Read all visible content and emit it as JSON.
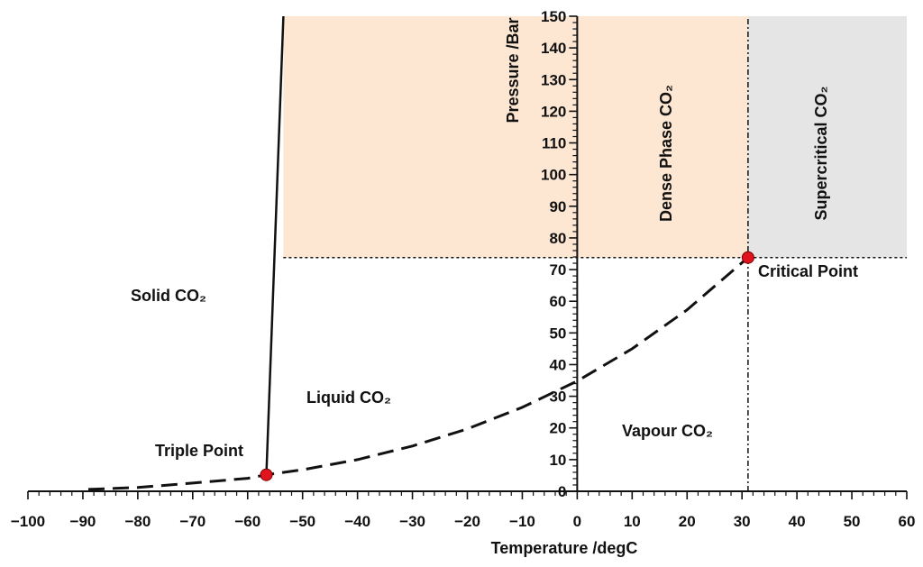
{
  "chart_data": {
    "type": "line",
    "title": "",
    "xlabel": "Temperature /degC",
    "ylabel": "Pressure /Bar",
    "xlim": [
      -100,
      60
    ],
    "ylim": [
      0,
      150
    ],
    "x_ticks": [
      -100,
      -90,
      -80,
      -70,
      -60,
      -50,
      -40,
      -30,
      -20,
      -10,
      0,
      10,
      20,
      30,
      40,
      50,
      60
    ],
    "y_ticks": [
      0,
      10,
      20,
      30,
      40,
      50,
      60,
      70,
      80,
      90,
      100,
      110,
      120,
      130,
      140,
      150
    ],
    "x_tick_labels": [
      "−100",
      "−90",
      "−80",
      "−70",
      "−60",
      "−50",
      "−40",
      "−30",
      "−20",
      "−10",
      "0",
      "10",
      "20",
      "30",
      "40",
      "50",
      "60"
    ],
    "y_tick_labels": [
      "0",
      "10",
      "20",
      "30",
      "40",
      "50",
      "60",
      "70",
      "80",
      "90",
      "100",
      "110",
      "120",
      "130",
      "140",
      "150"
    ],
    "grid": false,
    "series": [
      {
        "style": "solid",
        "color": "#111111",
        "points": [
          [
            -56.6,
            5.2
          ],
          [
            -53.5,
            150
          ]
        ]
      },
      {
        "style": "dashed",
        "color": "#111111",
        "points": [
          [
            -89,
            0.6
          ],
          [
            -80,
            1.2
          ],
          [
            -70,
            2.6
          ],
          [
            -60,
            4.1
          ],
          [
            -56.6,
            5.2
          ],
          [
            -50,
            6.8
          ],
          [
            -40,
            10
          ],
          [
            -30,
            14.3
          ],
          [
            -20,
            19.7
          ],
          [
            -10,
            26.5
          ],
          [
            0,
            34.8
          ],
          [
            10,
            45
          ],
          [
            20,
            57.3
          ],
          [
            31.1,
            73.8
          ]
        ]
      }
    ],
    "points": [
      {
        "name": "Triple Point",
        "x": -56.6,
        "y": 5.2,
        "color": "#e0141e"
      },
      {
        "name": "Critical Point",
        "x": 31.1,
        "y": 73.8,
        "color": "#e0141e"
      }
    ],
    "reference_lines": [
      {
        "orientation": "horizontal",
        "value": 73.8,
        "from": -53.5,
        "to": 60,
        "style": "dotted"
      },
      {
        "orientation": "vertical",
        "value": 31.1,
        "from": 0,
        "to": 150,
        "style": "dashdot"
      }
    ],
    "regions": [
      {
        "label": "Dense Phase CO₂",
        "x_range": [
          -53.5,
          31.1
        ],
        "y_range": [
          73.8,
          150
        ],
        "color": "#fde7d2"
      },
      {
        "label": "Supercritical CO₂",
        "x_range": [
          31.1,
          60
        ],
        "y_range": [
          73.8,
          150
        ],
        "color": "#e5e5e5"
      }
    ],
    "labels": {
      "solid": "Solid CO₂",
      "liquid": "Liquid CO₂",
      "vapour": "Vapour CO₂",
      "dense": "Dense Phase CO₂",
      "supercritical": "Supercritical CO₂",
      "triple": "Triple Point",
      "critical": "Critical Point"
    }
  }
}
